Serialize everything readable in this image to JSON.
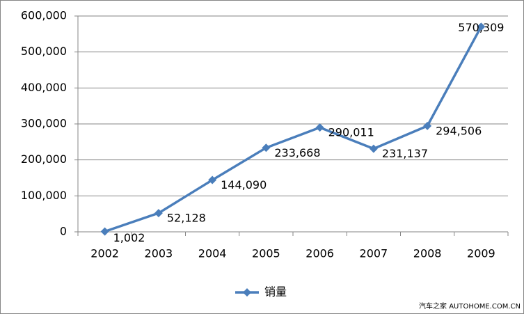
{
  "chart_data": {
    "type": "line",
    "categories": [
      "2002",
      "2003",
      "2004",
      "2005",
      "2006",
      "2007",
      "2008",
      "2009"
    ],
    "series": [
      {
        "name": "销量",
        "color": "#4a7ebb",
        "values": [
          1002,
          52128,
          144090,
          233668,
          290011,
          231137,
          294506,
          570309
        ],
        "value_labels": [
          "1,002",
          "52,128",
          "144,090",
          "233,668",
          "290,011",
          "231,137",
          "294,506",
          "570,309"
        ]
      }
    ],
    "ylim": [
      0,
      600000
    ],
    "yticks": [
      {
        "value": 0,
        "label": "0"
      },
      {
        "value": 100000,
        "label": "100,000"
      },
      {
        "value": 200000,
        "label": "200,000"
      },
      {
        "value": 300000,
        "label": "300,000"
      },
      {
        "value": 400000,
        "label": "400,000"
      },
      {
        "value": 500000,
        "label": "500,000"
      },
      {
        "value": 600000,
        "label": "600,000"
      }
    ],
    "grid": true,
    "legend": "bottom",
    "watermark": "汽车之家 AUTOHOME.COM.CN"
  }
}
